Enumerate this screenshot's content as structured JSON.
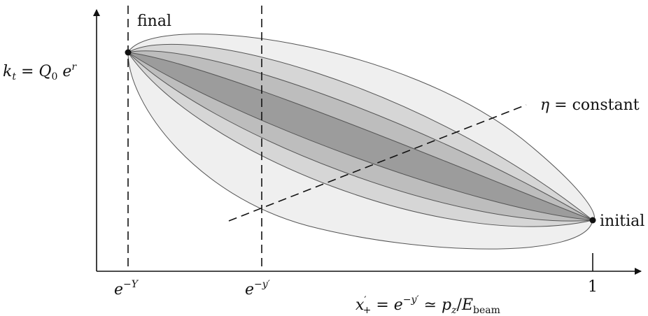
{
  "labels": {
    "final": "final",
    "initial": "initial",
    "eta_lhs": "η",
    "eta_eq": " = ",
    "eta_rhs": "constant",
    "y_axis": {
      "kt": "k",
      "kt_sub": "t",
      "eq": " = ",
      "Q": "Q",
      "Q_sub": "0",
      "e": " e",
      "e_sup": "r"
    },
    "tick_eY": {
      "base": "e",
      "sup": "−Y"
    },
    "tick_eyp": {
      "base": "e",
      "sup": "−y′"
    },
    "tick_one": "1",
    "x_axis": {
      "x": "x",
      "x_prime_sub": "′",
      "x_sub": "+",
      "eq": " = ",
      "e": "e",
      "e_sup": "−y′",
      "approx": " ≃ ",
      "p": "p",
      "p_sub": "z",
      "slash": "/",
      "E": "E",
      "E_sub": "beam"
    }
  },
  "colors": {
    "layer1": "#efefef",
    "layer2": "#d6d6d6",
    "layer3": "#bdbdbd",
    "layer4": "#9c9c9c",
    "stroke": "#555555",
    "axis": "#111111"
  }
}
